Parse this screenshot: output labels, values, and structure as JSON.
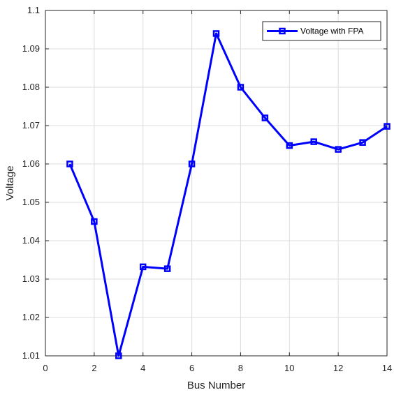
{
  "chart_data": {
    "type": "line",
    "title": "",
    "xlabel": "Bus Number",
    "ylabel": "Voltage",
    "xlim": [
      0,
      14
    ],
    "ylim": [
      1.01,
      1.1
    ],
    "xticks": [
      "0",
      "2",
      "4",
      "6",
      "8",
      "10",
      "12",
      "14"
    ],
    "yticks": [
      "1.01",
      "1.02",
      "1.03",
      "1.04",
      "1.05",
      "1.06",
      "1.07",
      "1.08",
      "1.09",
      "1.1"
    ],
    "grid": true,
    "legend_position": "top-right",
    "series": [
      {
        "name": "Voltage with FPA",
        "color": "#0000ff",
        "marker": "square",
        "x": [
          1,
          2,
          3,
          4,
          5,
          6,
          7,
          8,
          9,
          10,
          11,
          12,
          13,
          14
        ],
        "y": [
          1.06,
          1.045,
          1.01,
          1.0332,
          1.0327,
          1.06,
          1.094,
          1.08,
          1.072,
          1.0648,
          1.0658,
          1.0638,
          1.0656,
          1.0698
        ]
      }
    ]
  }
}
